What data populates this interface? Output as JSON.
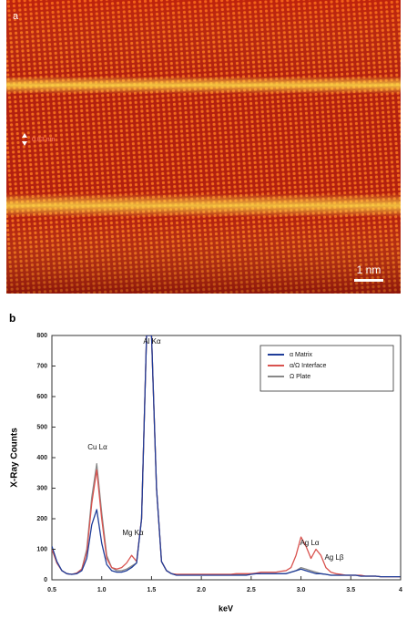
{
  "image_panel": {
    "label": "a",
    "spacing_label": "0.83 nm",
    "scale_bar": "1 nm"
  },
  "chart_data": {
    "type": "line",
    "panel_label": "b",
    "x_label": "keV",
    "y_label": "X-Ray Counts",
    "xlim": [
      0.5,
      4
    ],
    "ylim": [
      0,
      800
    ],
    "xticks": [
      0.5,
      {
        "value": 1,
        "label": "1.0"
      },
      1.5,
      {
        "value": 2,
        "label": "2.0"
      },
      2.5,
      {
        "value": 3,
        "label": "3.0"
      },
      3.5,
      4
    ],
    "yticks": [
      0,
      100,
      200,
      300,
      400,
      500,
      600,
      700,
      800
    ],
    "legend": "upper right",
    "annotations": [
      "Cu Lα",
      "Mg Kα",
      "Al Kα",
      "Ag Lα",
      "Ag Lβ"
    ],
    "x": [
      0.5,
      0.55,
      0.6,
      0.65,
      0.7,
      0.75,
      0.8,
      0.85,
      0.9,
      0.95,
      1.0,
      1.05,
      1.1,
      1.15,
      1.2,
      1.25,
      1.3,
      1.35,
      1.4,
      1.45,
      1.5,
      1.55,
      1.6,
      1.65,
      1.7,
      1.75,
      1.8,
      1.85,
      1.9,
      1.95,
      2.0,
      2.05,
      2.1,
      2.15,
      2.2,
      2.25,
      2.3,
      2.35,
      2.4,
      2.45,
      2.5,
      2.55,
      2.6,
      2.65,
      2.7,
      2.75,
      2.8,
      2.85,
      2.9,
      2.95,
      3.0,
      3.05,
      3.1,
      3.15,
      3.2,
      3.25,
      3.3,
      3.35,
      3.4,
      3.45,
      3.5,
      3.55,
      3.6,
      3.65,
      3.7,
      3.75,
      3.8,
      3.85,
      3.9,
      3.95,
      4.0
    ],
    "series": [
      {
        "name": "α Matrix",
        "color": "#1f3d99",
        "values": [
          110,
          60,
          30,
          20,
          18,
          20,
          30,
          70,
          180,
          230,
          120,
          50,
          30,
          25,
          25,
          30,
          40,
          55,
          200,
          800,
          800,
          300,
          60,
          30,
          20,
          15,
          15,
          15,
          15,
          15,
          15,
          15,
          15,
          15,
          15,
          15,
          15,
          15,
          15,
          15,
          18,
          20,
          20,
          20,
          20,
          20,
          20,
          20,
          25,
          30,
          35,
          30,
          25,
          20,
          20,
          18,
          15,
          15,
          15,
          15,
          15,
          15,
          12,
          12,
          12,
          12,
          10,
          10,
          10,
          10,
          10
        ]
      },
      {
        "name": "α/Ω Interface",
        "color": "#d9534f",
        "values": [
          100,
          55,
          30,
          20,
          18,
          22,
          35,
          90,
          250,
          360,
          200,
          70,
          40,
          35,
          40,
          55,
          80,
          60,
          200,
          800,
          800,
          300,
          60,
          30,
          20,
          18,
          18,
          18,
          18,
          18,
          18,
          18,
          18,
          18,
          18,
          18,
          18,
          20,
          20,
          20,
          20,
          22,
          25,
          25,
          25,
          25,
          28,
          30,
          40,
          80,
          140,
          110,
          70,
          100,
          80,
          40,
          25,
          20,
          18,
          15,
          15,
          15,
          15,
          12,
          12,
          12,
          10,
          10,
          10,
          10,
          10
        ]
      },
      {
        "name": "Ω Plate",
        "color": "#888888",
        "values": [
          105,
          55,
          30,
          20,
          18,
          22,
          35,
          100,
          270,
          380,
          220,
          80,
          40,
          30,
          30,
          35,
          45,
          55,
          200,
          800,
          800,
          300,
          60,
          30,
          20,
          18,
          18,
          18,
          18,
          18,
          18,
          18,
          18,
          18,
          18,
          18,
          18,
          18,
          18,
          18,
          20,
          20,
          20,
          20,
          20,
          20,
          20,
          20,
          25,
          30,
          40,
          35,
          30,
          25,
          20,
          18,
          15,
          15,
          15,
          15,
          15,
          15,
          12,
          12,
          12,
          12,
          10,
          10,
          10,
          10,
          10
        ]
      }
    ]
  }
}
